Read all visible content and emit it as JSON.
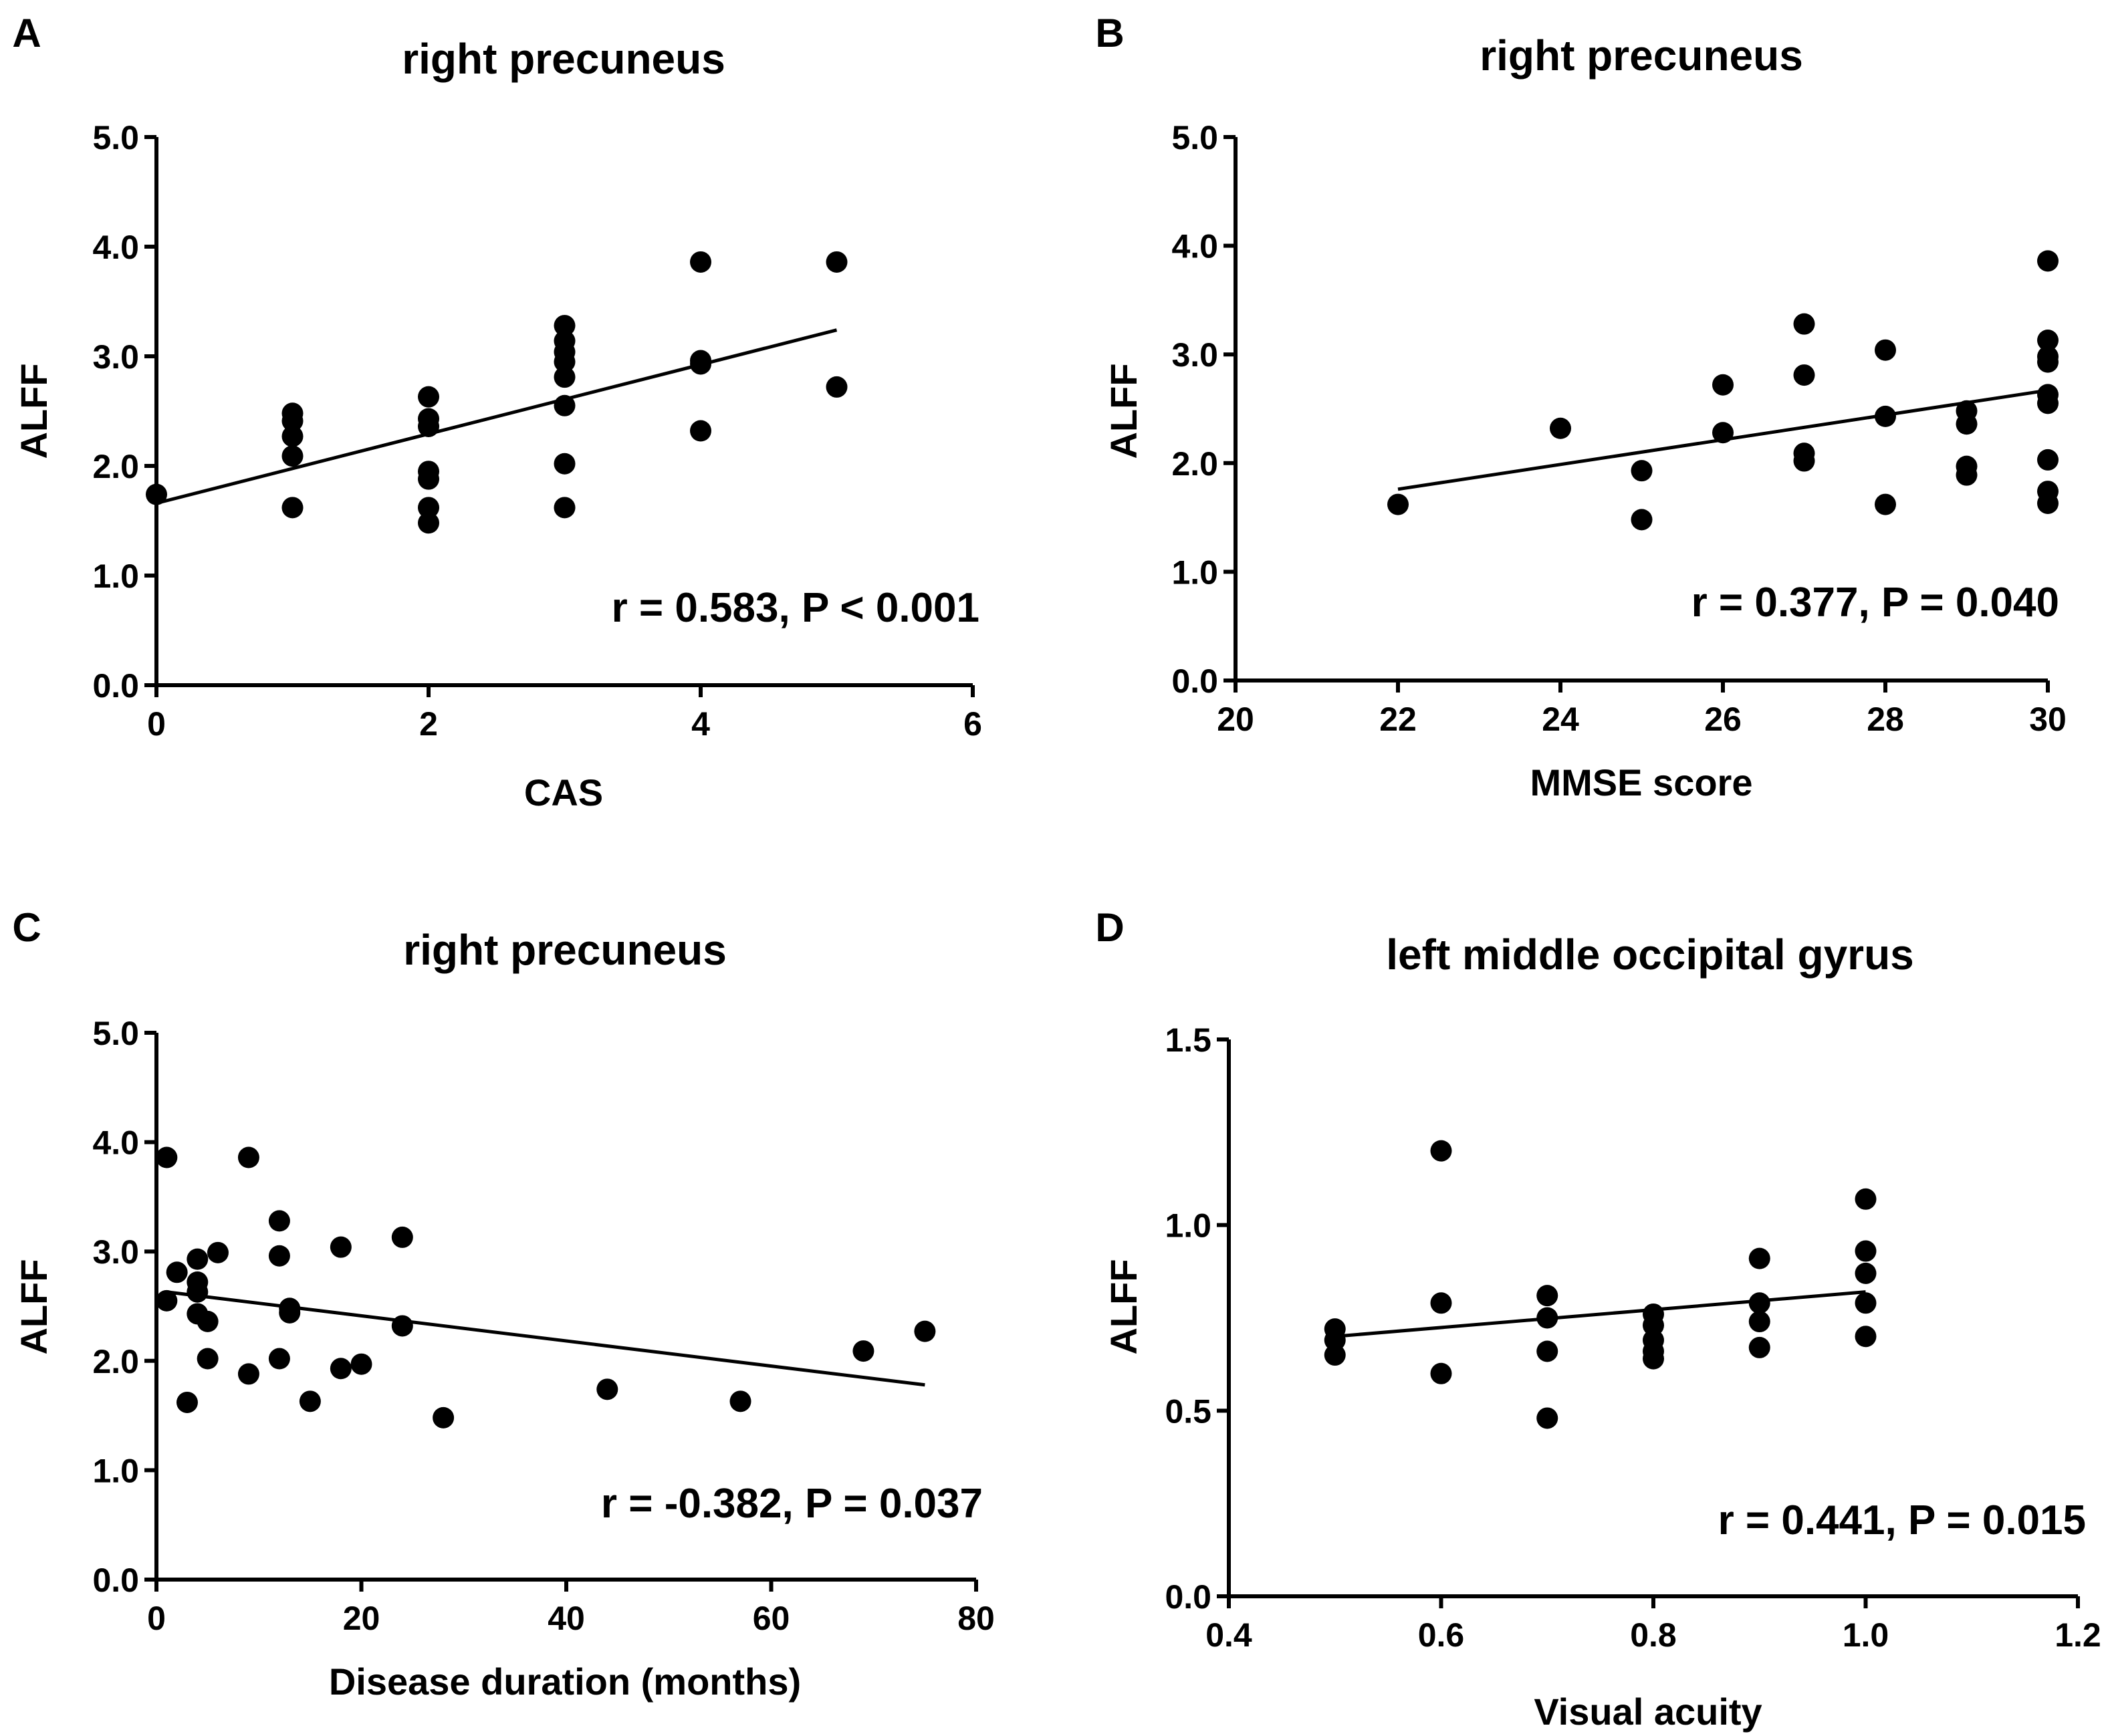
{
  "chart_data": [
    {
      "type": "scatter",
      "panel": "A",
      "title": "right precuneus",
      "xlabel": "CAS",
      "ylabel": "ALFF",
      "xlim": [
        0,
        6
      ],
      "ylim": [
        0,
        5
      ],
      "xticks": [
        0,
        2,
        4,
        6
      ],
      "xtick_labels": [
        "0",
        "2",
        "4",
        "6"
      ],
      "yticks": [
        0,
        1,
        2,
        3,
        4,
        5
      ],
      "ytick_labels": [
        "0.0",
        "1.0",
        "2.0",
        "3.0",
        "4.0",
        "5.0"
      ],
      "annotation": "r = 0.583, P < 0.001",
      "points": [
        [
          0,
          1.74
        ],
        [
          1,
          2.48
        ],
        [
          1,
          2.41
        ],
        [
          1,
          2.27
        ],
        [
          1,
          2.09
        ],
        [
          1,
          1.62
        ],
        [
          2,
          2.63
        ],
        [
          2,
          2.43
        ],
        [
          2,
          2.36
        ],
        [
          2,
          1.95
        ],
        [
          2,
          1.88
        ],
        [
          2,
          1.62
        ],
        [
          2,
          1.48
        ],
        [
          3,
          3.28
        ],
        [
          3,
          3.14
        ],
        [
          3,
          3.04
        ],
        [
          3,
          2.95
        ],
        [
          3,
          2.81
        ],
        [
          3,
          2.55
        ],
        [
          3,
          2.02
        ],
        [
          3,
          1.62
        ],
        [
          4,
          3.86
        ],
        [
          4,
          2.96
        ],
        [
          4,
          2.93
        ],
        [
          4,
          2.32
        ],
        [
          5,
          3.86
        ],
        [
          5,
          2.72
        ]
      ],
      "fit_line": [
        [
          0,
          1.66
        ],
        [
          5,
          3.24
        ]
      ]
    },
    {
      "type": "scatter",
      "panel": "B",
      "title": "right precuneus",
      "xlabel": "MMSE score",
      "ylabel": "ALFF",
      "xlim": [
        20,
        30
      ],
      "ylim": [
        0,
        5
      ],
      "xticks": [
        20,
        22,
        24,
        26,
        28,
        30
      ],
      "xtick_labels": [
        "20",
        "22",
        "24",
        "26",
        "28",
        "30"
      ],
      "yticks": [
        0,
        1,
        2,
        3,
        4,
        5
      ],
      "ytick_labels": [
        "0.0",
        "1.0",
        "2.0",
        "3.0",
        "4.0",
        "5.0"
      ],
      "annotation": "r = 0.377, P = 0.040",
      "points": [
        [
          22,
          1.62
        ],
        [
          24,
          2.32
        ],
        [
          25,
          1.93
        ],
        [
          25,
          1.48
        ],
        [
          26,
          2.72
        ],
        [
          26,
          2.28
        ],
        [
          27,
          3.28
        ],
        [
          27,
          2.81
        ],
        [
          27,
          2.09
        ],
        [
          27,
          2.02
        ],
        [
          28,
          3.04
        ],
        [
          28,
          2.43
        ],
        [
          28,
          1.62
        ],
        [
          29,
          2.48
        ],
        [
          29,
          2.36
        ],
        [
          29,
          1.97
        ],
        [
          29,
          1.89
        ],
        [
          30,
          3.86
        ],
        [
          30,
          3.13
        ],
        [
          30,
          2.98
        ],
        [
          30,
          2.93
        ],
        [
          30,
          2.63
        ],
        [
          30,
          2.55
        ],
        [
          30,
          2.03
        ],
        [
          30,
          1.74
        ],
        [
          30,
          1.63
        ]
      ],
      "fit_line": [
        [
          22,
          1.76
        ],
        [
          30,
          2.67
        ]
      ]
    },
    {
      "type": "scatter",
      "panel": "C",
      "title": "right precuneus",
      "xlabel": "Disease duration (months)",
      "ylabel": "ALFF",
      "xlim": [
        0,
        80
      ],
      "ylim": [
        0,
        5
      ],
      "xticks": [
        0,
        20,
        40,
        60,
        80
      ],
      "xtick_labels": [
        "0",
        "20",
        "40",
        "60",
        "80"
      ],
      "yticks": [
        0,
        1,
        2,
        3,
        4,
        5
      ],
      "ytick_labels": [
        "0.0",
        "1.0",
        "2.0",
        "3.0",
        "4.0",
        "5.0"
      ],
      "annotation": "r = -0.382, P = 0.037",
      "points": [
        [
          1,
          3.86
        ],
        [
          1,
          2.55
        ],
        [
          2,
          2.81
        ],
        [
          3,
          1.62
        ],
        [
          4,
          2.93
        ],
        [
          4,
          2.72
        ],
        [
          4,
          2.63
        ],
        [
          4,
          2.43
        ],
        [
          5,
          2.36
        ],
        [
          5,
          2.02
        ],
        [
          6,
          2.99
        ],
        [
          9,
          3.86
        ],
        [
          9,
          1.88
        ],
        [
          12,
          3.28
        ],
        [
          12,
          2.96
        ],
        [
          12,
          2.02
        ],
        [
          13,
          2.48
        ],
        [
          13,
          2.44
        ],
        [
          15,
          1.63
        ],
        [
          18,
          3.04
        ],
        [
          18,
          1.93
        ],
        [
          20,
          1.97
        ],
        [
          24,
          3.13
        ],
        [
          24,
          2.32
        ],
        [
          28,
          1.48
        ],
        [
          44,
          1.74
        ],
        [
          57,
          1.63
        ],
        [
          69,
          2.09
        ],
        [
          75,
          2.27
        ]
      ],
      "fit_line": [
        [
          1,
          2.63
        ],
        [
          75,
          1.78
        ]
      ]
    },
    {
      "type": "scatter",
      "panel": "D",
      "title": "left middle occipital gyrus",
      "xlabel": "Visual acuity",
      "ylabel": "ALFF",
      "xlim": [
        0.4,
        1.2
      ],
      "ylim": [
        0,
        1.5
      ],
      "xticks": [
        0.4,
        0.6,
        0.8,
        1.0,
        1.2
      ],
      "xtick_labels": [
        "0.4",
        "0.6",
        "0.8",
        "1.0",
        "1.2"
      ],
      "yticks": [
        0,
        0.5,
        1.0,
        1.5
      ],
      "ytick_labels": [
        "0.0",
        "0.5",
        "1.0",
        "1.5"
      ],
      "annotation": "r = 0.441, P = 0.015",
      "points": [
        [
          0.5,
          0.72
        ],
        [
          0.5,
          0.69
        ],
        [
          0.5,
          0.65
        ],
        [
          0.6,
          1.2
        ],
        [
          0.6,
          0.79
        ],
        [
          0.6,
          0.6
        ],
        [
          0.7,
          0.81
        ],
        [
          0.7,
          0.75
        ],
        [
          0.7,
          0.66
        ],
        [
          0.7,
          0.48
        ],
        [
          0.8,
          0.76
        ],
        [
          0.8,
          0.73
        ],
        [
          0.8,
          0.69
        ],
        [
          0.8,
          0.66
        ],
        [
          0.8,
          0.64
        ],
        [
          0.9,
          0.91
        ],
        [
          0.9,
          0.79
        ],
        [
          0.9,
          0.74
        ],
        [
          0.9,
          0.67
        ],
        [
          1.0,
          1.07
        ],
        [
          1.0,
          0.93
        ],
        [
          1.0,
          0.87
        ],
        [
          1.0,
          0.79
        ],
        [
          1.0,
          0.7
        ]
      ],
      "fit_line": [
        [
          0.5,
          0.7
        ],
        [
          1.0,
          0.82
        ]
      ]
    }
  ]
}
